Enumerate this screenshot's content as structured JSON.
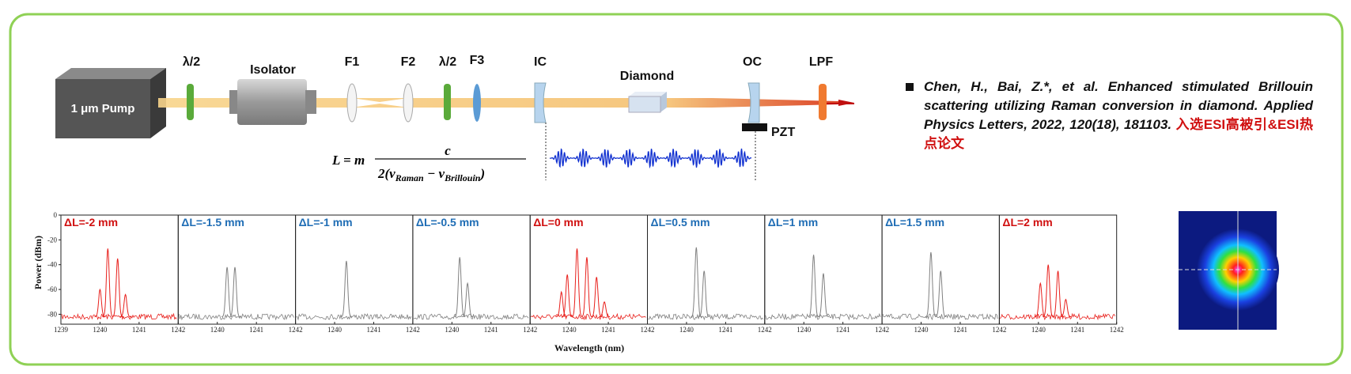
{
  "setup": {
    "pump": "1 μm Pump",
    "labels": [
      "λ/2",
      "Isolator",
      "F1",
      "F2",
      "λ/2",
      "F3",
      "IC",
      "Diamond",
      "OC",
      "LPF"
    ],
    "pzt": "PZT"
  },
  "formula": {
    "lhs": "L = m",
    "numerator": "c",
    "open": "2(v",
    "sub1": "Raman",
    "mid": " − v",
    "sub2": "Brillouin",
    "close": ")"
  },
  "citation": {
    "text": "Chen, H., Bai, Z.*, et al. Enhanced stimulated Brillouin scattering utilizing Raman conversion in diamond. Applied Physics Letters, 2022, 120(18), 181103.",
    "highlight": "入选ESI高被引&ESI热点论文"
  },
  "spectra": {
    "y_label": "Power (dBm)",
    "x_label": "Wavelength (nm)",
    "ylim": [
      -88,
      0
    ],
    "yticks": [
      0,
      -20,
      -40,
      -60,
      -80
    ],
    "xlim": [
      1239,
      1242
    ],
    "noise_floor": -82,
    "panels": [
      {
        "label": "ΔL=-2 mm",
        "label_color": "#d01010",
        "color": "#e8201c",
        "xticks": [
          1239,
          1240,
          1241,
          1242
        ],
        "peaks": [
          [
            1240.0,
            -60
          ],
          [
            1240.2,
            -27
          ],
          [
            1240.45,
            -35
          ],
          [
            1240.65,
            -64
          ]
        ]
      },
      {
        "label": "ΔL=-1.5 mm",
        "label_color": "#1f6db5",
        "color": "#808080",
        "xticks": [
          1240,
          1241,
          1242
        ],
        "peaks": [
          [
            1240.25,
            -42
          ],
          [
            1240.45,
            -42
          ]
        ]
      },
      {
        "label": "ΔL=-1 mm",
        "label_color": "#1f6db5",
        "color": "#808080",
        "xticks": [
          1240,
          1241,
          1242
        ],
        "peaks": [
          [
            1240.3,
            -37
          ]
        ]
      },
      {
        "label": "ΔL=-0.5 mm",
        "label_color": "#1f6db5",
        "color": "#808080",
        "xticks": [
          1240,
          1241,
          1242
        ],
        "peaks": [
          [
            1240.2,
            -34
          ],
          [
            1240.4,
            -55
          ]
        ]
      },
      {
        "label": "ΔL=0 mm",
        "label_color": "#d01010",
        "color": "#e8201c",
        "xticks": [
          1240,
          1241,
          1242
        ],
        "peaks": [
          [
            1239.8,
            -62
          ],
          [
            1239.95,
            -48
          ],
          [
            1240.2,
            -27
          ],
          [
            1240.45,
            -34
          ],
          [
            1240.7,
            -50
          ],
          [
            1240.9,
            -70
          ]
        ]
      },
      {
        "label": "ΔL=0.5 mm",
        "label_color": "#1f6db5",
        "color": "#808080",
        "xticks": [
          1240,
          1241,
          1242
        ],
        "peaks": [
          [
            1240.25,
            -26
          ],
          [
            1240.45,
            -45
          ]
        ]
      },
      {
        "label": "ΔL=1 mm",
        "label_color": "#1f6db5",
        "color": "#808080",
        "xticks": [
          1240,
          1241,
          1242
        ],
        "peaks": [
          [
            1240.25,
            -32
          ],
          [
            1240.5,
            -47
          ]
        ]
      },
      {
        "label": "ΔL=1.5 mm",
        "label_color": "#1f6db5",
        "color": "#808080",
        "xticks": [
          1240,
          1241,
          1242
        ],
        "peaks": [
          [
            1240.25,
            -30
          ],
          [
            1240.5,
            -45
          ]
        ]
      },
      {
        "label": "ΔL=2 mm",
        "label_color": "#d01010",
        "color": "#e8201c",
        "xticks": [
          1240,
          1241,
          1242
        ],
        "peaks": [
          [
            1240.05,
            -55
          ],
          [
            1240.25,
            -40
          ],
          [
            1240.5,
            -45
          ],
          [
            1240.7,
            -68
          ]
        ]
      }
    ]
  }
}
